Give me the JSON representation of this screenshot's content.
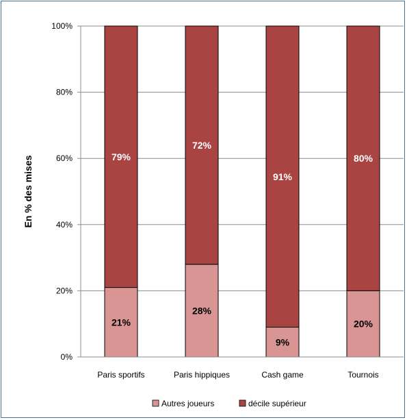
{
  "chart_data": {
    "type": "bar",
    "stacked": true,
    "percent_stacked": true,
    "title": "",
    "xlabel": "",
    "ylabel": "En % des mises",
    "ylim": [
      0,
      100
    ],
    "yticks": [
      "0%",
      "20%",
      "40%",
      "60%",
      "80%",
      "100%"
    ],
    "ytick_values": [
      0,
      20,
      40,
      60,
      80,
      100
    ],
    "categories": [
      "Paris sportifs",
      "Paris hippiques",
      "Cash game",
      "Tournois"
    ],
    "series": [
      {
        "name": "Autres joueurs",
        "color": "#d99594",
        "label_color": "#000000",
        "values": [
          21,
          28,
          9,
          20
        ],
        "labels": [
          "21%",
          "28%",
          "9%",
          "20%"
        ]
      },
      {
        "name": "décile supérieur",
        "color": "#a94442",
        "label_color": "#ffffff",
        "values": [
          79,
          72,
          91,
          80
        ],
        "labels": [
          "79%",
          "72%",
          "91%",
          "80%"
        ]
      }
    ],
    "grid": true,
    "legend_position": "bottom"
  }
}
